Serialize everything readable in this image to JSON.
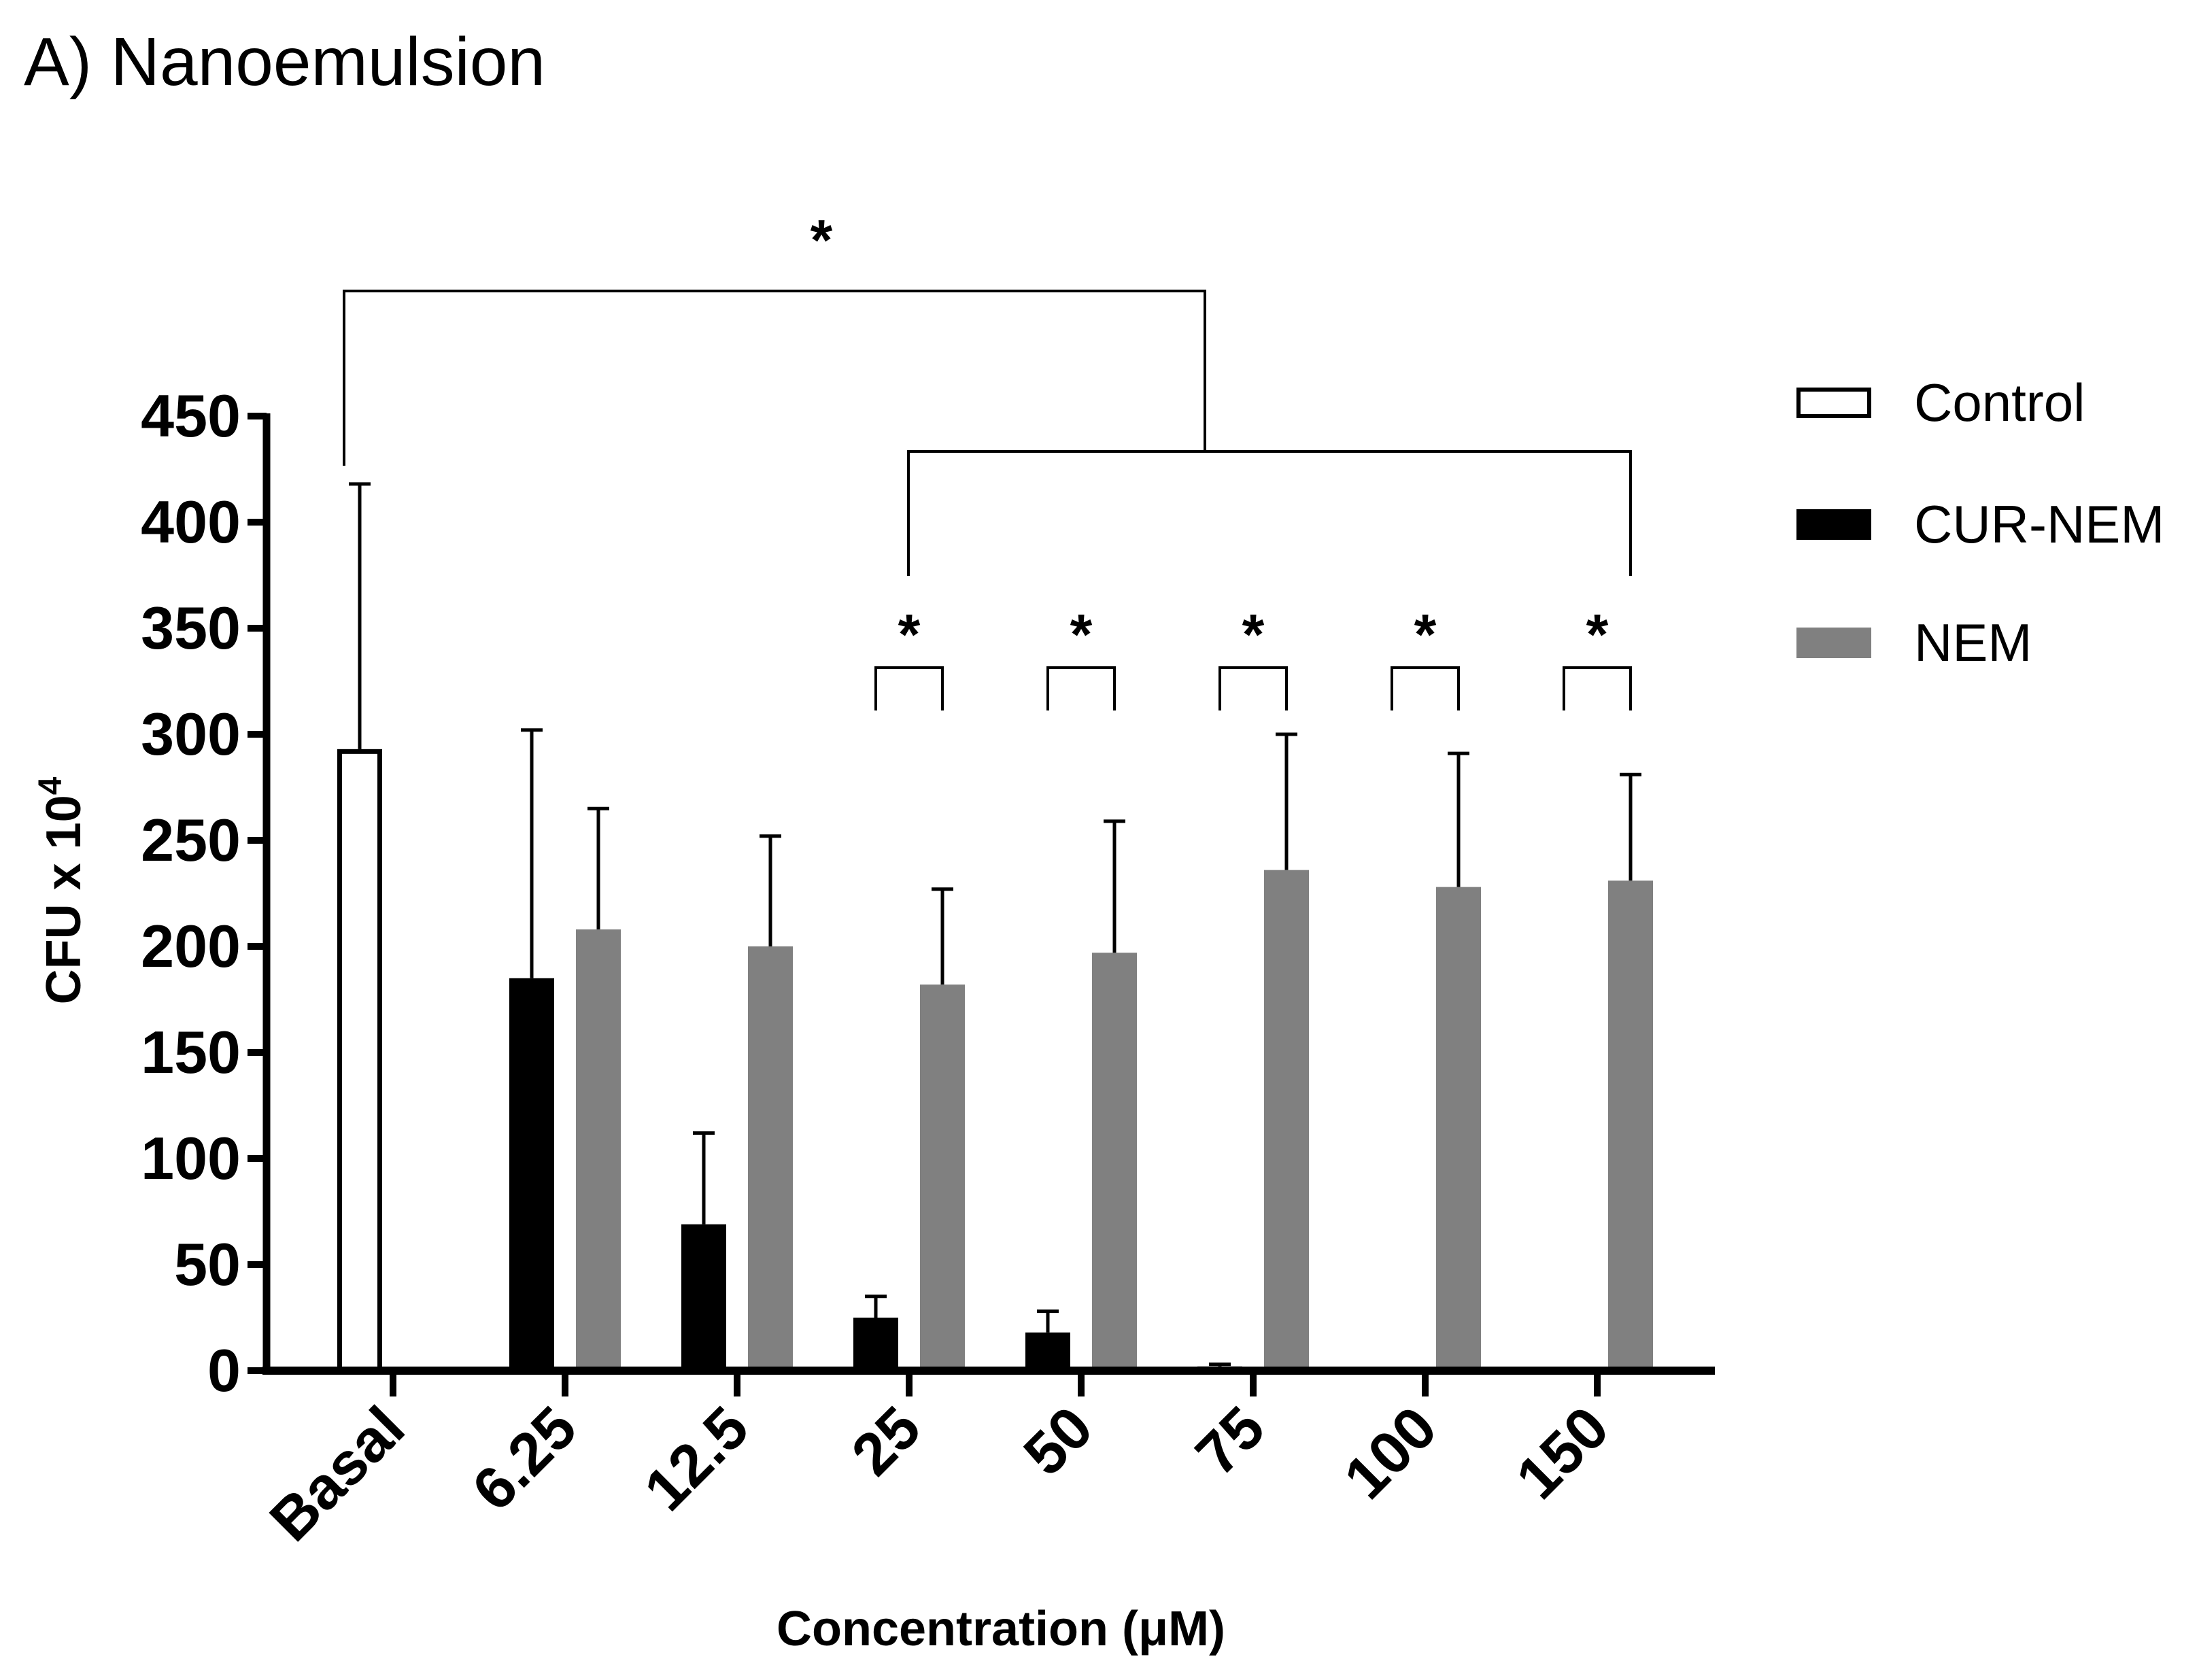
{
  "panel_title": "A) Nanoemulsion",
  "chart_data": {
    "type": "bar",
    "title": "A) Nanoemulsion",
    "xlabel": "Concentration (μM)",
    "ylabel_main": "CFU x 10",
    "ylabel_sup": "4",
    "ylim": [
      0,
      450
    ],
    "yticks": [
      0,
      50,
      100,
      150,
      200,
      250,
      300,
      350,
      400,
      450
    ],
    "categories": [
      "Basal",
      "6.25",
      "12.5",
      "25",
      "50",
      "75",
      "100",
      "150"
    ],
    "series": [
      {
        "name": "Control",
        "color": "#ffffff",
        "stroke": "#000000",
        "values": [
          293,
          null,
          null,
          null,
          null,
          null,
          null,
          null
        ],
        "errors": [
          125,
          null,
          null,
          null,
          null,
          null,
          null,
          null
        ]
      },
      {
        "name": "CUR-NEM",
        "color": "#000000",
        "stroke": "#000000",
        "values": [
          null,
          185,
          69,
          25,
          18,
          2,
          0,
          0
        ],
        "errors": [
          null,
          117,
          43,
          10,
          10,
          1,
          0,
          0
        ]
      },
      {
        "name": "NEM",
        "color": "#808080",
        "stroke": "#808080",
        "values": [
          null,
          208,
          200,
          182,
          197,
          236,
          228,
          231
        ],
        "errors": [
          null,
          57,
          52,
          45,
          62,
          64,
          63,
          50
        ]
      }
    ],
    "annotations": {
      "star": "*",
      "pair_brackets": [
        "25",
        "50",
        "75",
        "100",
        "150"
      ],
      "group_bracket": {
        "from": "Basal",
        "to_range": [
          "25",
          "150"
        ]
      }
    },
    "legend_position": "right"
  }
}
